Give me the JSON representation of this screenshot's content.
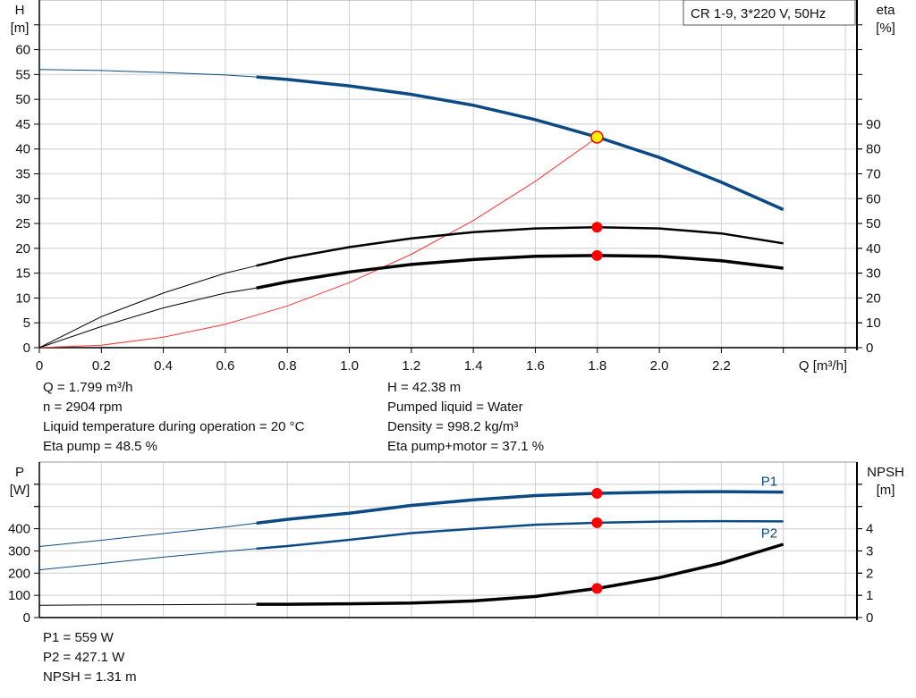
{
  "chart_data": [
    {
      "type": "line",
      "legend_box": "CR 1-9, 3*220 V, 50Hz",
      "xlabel": "Q [m³/h]",
      "ylabel_left": [
        "H",
        "[m]"
      ],
      "ylabel_right": [
        "eta",
        "[%]"
      ],
      "xlim": [
        0,
        2.6
      ],
      "ylim_left": [
        0,
        70
      ],
      "ylim_right": [
        0,
        140
      ],
      "x_ticks": [
        "0",
        "0.2",
        "0.4",
        "0.6",
        "0.8",
        "1.0",
        "1.2",
        "1.4",
        "1.6",
        "1.8",
        "2.0",
        "2.2"
      ],
      "y_ticks_left": [
        0,
        5,
        10,
        15,
        20,
        25,
        30,
        35,
        40,
        45,
        50,
        55,
        60
      ],
      "y_ticks_right": [
        0,
        10,
        20,
        30,
        40,
        50,
        60,
        70,
        80,
        90
      ],
      "grid": true,
      "x": [
        0,
        0.2,
        0.4,
        0.6,
        0.7,
        0.8,
        1.0,
        1.2,
        1.4,
        1.6,
        1.8,
        2.0,
        2.2,
        2.4
      ],
      "series": [
        {
          "key": "H",
          "axis": "left",
          "color": "#0b4a85",
          "values": [
            56,
            55.8,
            55.4,
            54.9,
            54.5,
            54,
            52.7,
            51,
            48.8,
            45.9,
            42.4,
            38.3,
            33.3,
            27.8
          ]
        },
        {
          "key": "eta_pump",
          "axis": "right",
          "color": "#000000",
          "values": [
            0,
            12.5,
            22,
            30,
            33,
            36,
            40.5,
            44,
            46.5,
            48,
            48.5,
            48,
            46,
            42
          ]
        },
        {
          "key": "eta_pump_motor",
          "axis": "right",
          "color": "#000000",
          "values": [
            0,
            8.5,
            16,
            22,
            24,
            26.5,
            30.5,
            33.5,
            35.5,
            36.8,
            37.1,
            36.8,
            35,
            32
          ]
        }
      ],
      "system_curve": {
        "color": "#ff3333",
        "x": [
          0,
          0.2,
          0.4,
          0.6,
          0.8,
          1.0,
          1.2,
          1.4,
          1.6,
          1.8
        ],
        "values": [
          0,
          0.5,
          2.1,
          4.7,
          8.4,
          13.1,
          18.8,
          25.6,
          33.5,
          42.38
        ]
      },
      "duty_point": {
        "q": 1.799,
        "h": 42.38,
        "eta_pump": 48.5,
        "eta_pump_motor": 37.1
      },
      "marker_colors": {
        "duty": "#ffee00",
        "point": "#ff0000"
      }
    },
    {
      "type": "line",
      "ylabel_left": [
        "P",
        "[W]"
      ],
      "ylabel_right": [
        "NPSH",
        "[m]"
      ],
      "xlim": [
        0,
        2.6
      ],
      "ylim_left": [
        0,
        700
      ],
      "ylim_right": [
        0,
        7
      ],
      "y_ticks_left": [
        0,
        100,
        200,
        300,
        400
      ],
      "y_ticks_right": [
        0,
        1,
        2,
        3,
        4
      ],
      "grid": true,
      "x": [
        0,
        0.2,
        0.4,
        0.6,
        0.7,
        0.8,
        1.0,
        1.2,
        1.4,
        1.6,
        1.8,
        2.0,
        2.2,
        2.4
      ],
      "series": [
        {
          "name": "P1",
          "axis": "left",
          "color": "#0b4a85",
          "values": [
            320,
            348,
            378,
            408,
            425,
            442,
            470,
            505,
            530,
            549,
            559,
            565,
            567,
            565
          ]
        },
        {
          "name": "P2",
          "axis": "left",
          "color": "#0b4a85",
          "values": [
            215,
            243,
            272,
            298,
            310,
            322,
            350,
            380,
            400,
            418,
            427,
            432,
            434,
            433
          ]
        },
        {
          "key": "NPSH",
          "axis": "right",
          "color": "#000000",
          "values": [
            0.55,
            0.57,
            0.58,
            0.59,
            0.6,
            0.6,
            0.62,
            0.65,
            0.75,
            0.95,
            1.31,
            1.8,
            2.45,
            3.3
          ]
        }
      ],
      "duty_point": {
        "q": 1.799,
        "p1": 559,
        "p2": 427.1,
        "npsh": 1.31
      }
    }
  ],
  "info_top": {
    "left": [
      "Q = 1.799 m³/h",
      "n = 2904 rpm",
      "Liquid temperature during operation = 20 °C",
      "Eta pump = 48.5 %"
    ],
    "right": [
      "H = 42.38 m",
      "Pumped liquid = Water",
      "Density = 998.2 kg/m³",
      "Eta pump+motor = 37.1 %"
    ]
  },
  "info_bottom": [
    "P1 = 559 W",
    "P2 = 427.1 W",
    "NPSH = 1.31 m"
  ]
}
